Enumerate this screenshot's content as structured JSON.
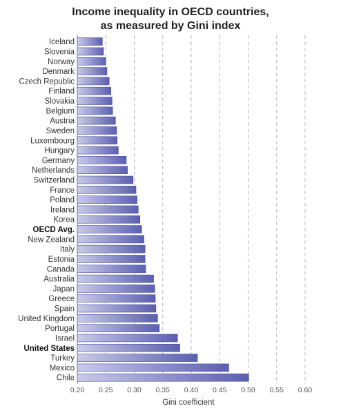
{
  "chart_data": {
    "type": "bar",
    "orientation": "horizontal",
    "title": [
      "Income inequality in OECD countries,",
      "as measured by Gini index"
    ],
    "xlabel": "Gini coefficient",
    "ylabel": "",
    "xlim": [
      0.2,
      0.6
    ],
    "xticks": [
      "0.20",
      "0.25",
      "0.30",
      "0.35",
      "0.40",
      "0.45",
      "0.50",
      "0.55",
      "0.60"
    ],
    "grid": "vertical dashed",
    "highlighted": [
      "OECD Avg.",
      "United States"
    ],
    "bar_color_light": "#c9cbe8",
    "bar_color_dark": "#5b5fb0",
    "categories": [
      "Iceland",
      "Slovenia",
      "Norway",
      "Denmark",
      "Czech Republic",
      "Finland",
      "Slovakia",
      "Belgium",
      "Austria",
      "Sweden",
      "Luxembourg",
      "Hungary",
      "Germany",
      "Netherlands",
      "Switzerland",
      "France",
      "Poland",
      "Ireland",
      "Korea",
      "OECD Avg.",
      "New Zealand",
      "Italy",
      "Estonia",
      "Canada",
      "Australia",
      "Japan",
      "Greece",
      "Spain",
      "United Kingdom",
      "Portugal",
      "Israel",
      "United States",
      "Turkey",
      "Mexico",
      "Chile"
    ],
    "values": [
      0.244,
      0.246,
      0.25,
      0.252,
      0.256,
      0.259,
      0.261,
      0.262,
      0.267,
      0.269,
      0.27,
      0.272,
      0.286,
      0.288,
      0.298,
      0.303,
      0.305,
      0.307,
      0.31,
      0.313,
      0.317,
      0.319,
      0.319,
      0.32,
      0.334,
      0.336,
      0.337,
      0.338,
      0.341,
      0.344,
      0.376,
      0.38,
      0.411,
      0.466,
      0.501
    ]
  }
}
